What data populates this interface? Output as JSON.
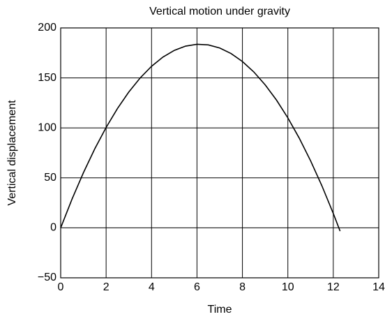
{
  "chart_data": {
    "type": "line",
    "title": "Vertical motion under gravity",
    "x_label": "Time",
    "y_label": "Vertical displacement",
    "series": [
      {
        "color": "#000000",
        "x": [
          0,
          0.5,
          1,
          1.5,
          2,
          2.5,
          3,
          3.5,
          4,
          4.5,
          5,
          5.5,
          6,
          6.5,
          7,
          7.5,
          8,
          8.5,
          9,
          9.5,
          10,
          10.5,
          11,
          11.5,
          12,
          12.3
        ],
        "values": [
          0,
          28.8,
          55.1,
          79.0,
          100.4,
          119.4,
          135.9,
          150.0,
          161.6,
          170.8,
          177.5,
          181.8,
          183.6,
          183.0,
          179.9,
          174.4,
          166.4,
          156.0,
          143.1,
          127.8,
          110,
          89.8,
          67.1,
          42.0,
          14.4,
          -3.3
        ]
      }
    ],
    "xlim": [
      0,
      14
    ],
    "xticks": [
      0,
      2,
      4,
      6,
      8,
      10,
      12,
      14
    ],
    "ylim": [
      -50,
      200
    ],
    "yticks": [
      {
        "value": -50,
        "label": "−50"
      },
      0,
      50,
      100,
      150,
      200
    ],
    "grid": true
  }
}
